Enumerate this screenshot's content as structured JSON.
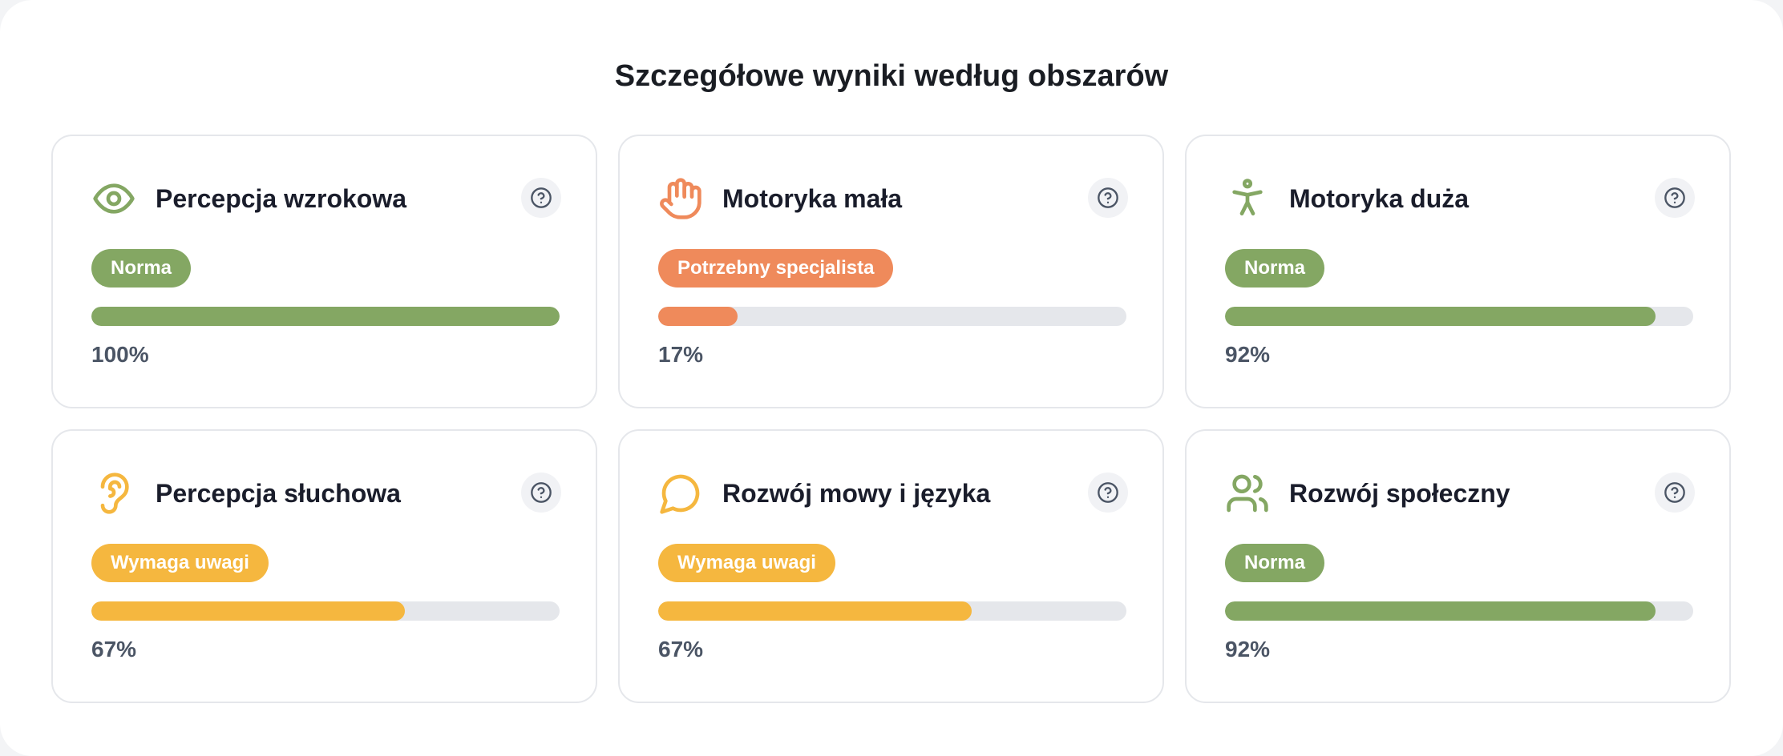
{
  "page": {
    "title": "Szczegółowe wyniki według obszarów"
  },
  "colors": {
    "norma": "#84a763",
    "specjalista": "#ef8a5b",
    "uwaga": "#f5b73f",
    "track": "#e5e7eb"
  },
  "cards": [
    {
      "title": "Percepcja wzrokowa",
      "icon": "eye-icon",
      "status": "Norma",
      "level": "norma",
      "percent_label": "100%",
      "progress": 1.0
    },
    {
      "title": "Motoryka mała",
      "icon": "hand-icon",
      "status": "Potrzebny specjalista",
      "level": "specjalista",
      "percent_label": "17%",
      "progress": 0.17
    },
    {
      "title": "Motoryka duża",
      "icon": "person-icon",
      "status": "Norma",
      "level": "norma",
      "percent_label": "92%",
      "progress": 0.92
    },
    {
      "title": "Percepcja słuchowa",
      "icon": "ear-icon",
      "status": "Wymaga uwagi",
      "level": "uwaga",
      "percent_label": "67%",
      "progress": 0.67
    },
    {
      "title": "Rozwój mowy i języka",
      "icon": "speech-bubble-icon",
      "status": "Wymaga uwagi",
      "level": "uwaga",
      "percent_label": "67%",
      "progress": 0.67
    },
    {
      "title": "Rozwój społeczny",
      "icon": "users-icon",
      "status": "Norma",
      "level": "norma",
      "percent_label": "92%",
      "progress": 0.92
    }
  ]
}
